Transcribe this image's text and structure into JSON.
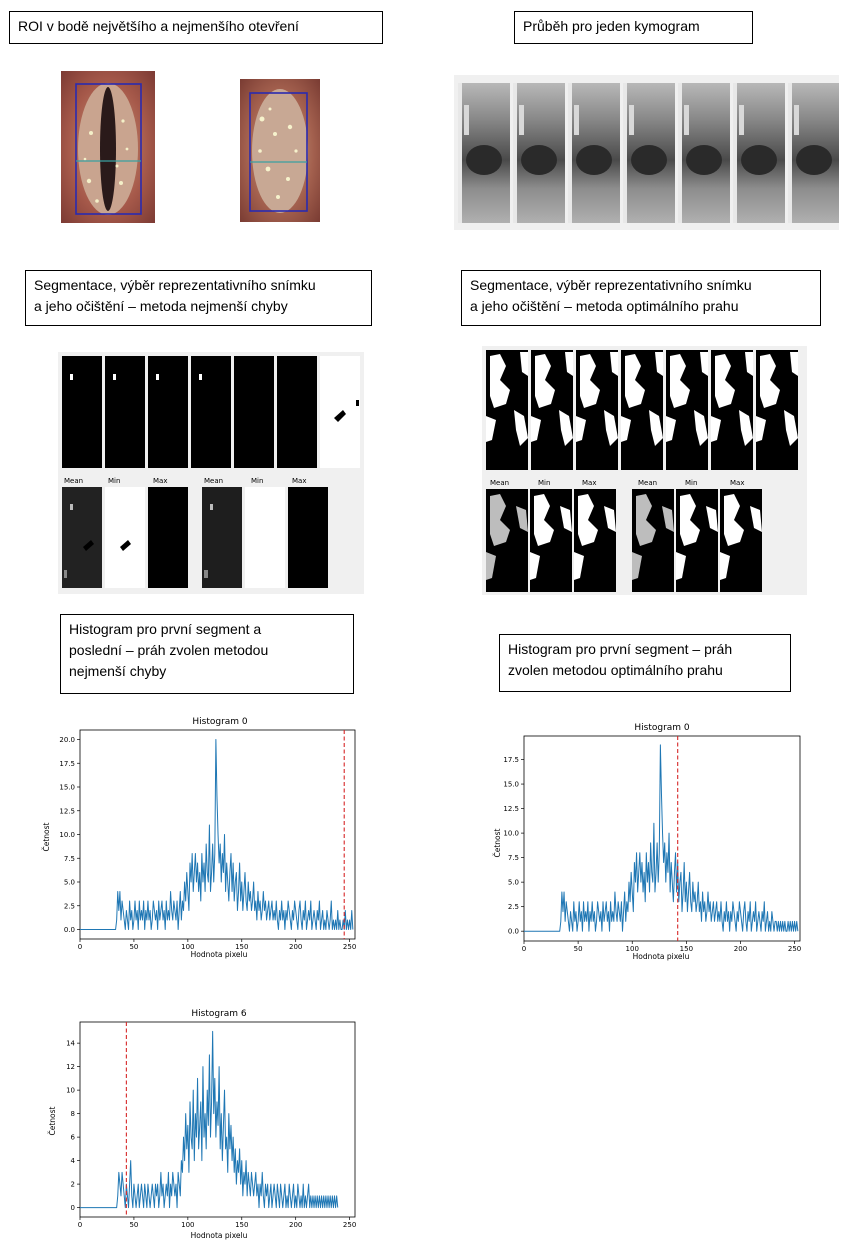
{
  "captions": {
    "roi": "ROI v bodě největšího a nejmenšího otevření",
    "kymo": "Průběh pro jeden kymogram",
    "seg_left": [
      "Segmentace, výběr reprezentativního snímku",
      "a jeho očištění – metoda nejmenší chyby"
    ],
    "seg_right": [
      "Segmentace, výběr reprezentativního snímku",
      "a jeho očištění – metoda optimálního prahu"
    ],
    "hist_left": [
      "Histogram pro první segment a",
      "poslední –  práh zvolen metodou",
      "nejmenší chyby"
    ],
    "hist_right": [
      "Histogram pro první segment –  práh",
      "zvolen metodou optimálního prahu"
    ]
  },
  "seg_panels": {
    "left_labels": [
      "Mean",
      "Min",
      "Max",
      "Mean",
      "Min",
      "Max"
    ],
    "right_labels": [
      "Mean",
      "Min",
      "Max",
      "Mean",
      "Min",
      "Max"
    ]
  },
  "chart_data": [
    {
      "type": "line",
      "title": "Histogram 0",
      "xlabel": "Hodnota pixelu",
      "ylabel": "Četnost",
      "xlim": [
        0,
        255
      ],
      "ylim": [
        -1,
        21
      ],
      "xticks": [
        "0",
        "50",
        "100",
        "150",
        "200",
        "250"
      ],
      "yticks": [
        "0.0",
        "2.5",
        "5.0",
        "7.5",
        "10.0",
        "12.5",
        "15.0",
        "17.5",
        "20.0"
      ],
      "threshold": 245,
      "series": [
        {
          "values": [
            0,
            0,
            0,
            0,
            0,
            0,
            0,
            0,
            0,
            0,
            0,
            0,
            0,
            0,
            0,
            0,
            0,
            0,
            0,
            0,
            0,
            0,
            0,
            0,
            0,
            0,
            0,
            0,
            0,
            0,
            0,
            0,
            0,
            0,
            1,
            4,
            2,
            4,
            1,
            3,
            2,
            1,
            0,
            2,
            1,
            0,
            3,
            1,
            2,
            0,
            1,
            3,
            1,
            2,
            0,
            3,
            1,
            2,
            1,
            3,
            0,
            2,
            1,
            3,
            1,
            2,
            0,
            1,
            3,
            2,
            1,
            2,
            0,
            3,
            1,
            2,
            3,
            1,
            2,
            0,
            3,
            1,
            2,
            1,
            4,
            2,
            1,
            3,
            2,
            1,
            3,
            0,
            2,
            4,
            1,
            3,
            2,
            5,
            3,
            6,
            4,
            2,
            7,
            5,
            8,
            4,
            6,
            8,
            5,
            7,
            4,
            6,
            3,
            8,
            5,
            7,
            4,
            9,
            6,
            5,
            11,
            4,
            6,
            9,
            5,
            8,
            20,
            14,
            10,
            7,
            9,
            5,
            8,
            6,
            10,
            4,
            7,
            5,
            3,
            6,
            8,
            4,
            7,
            3,
            5,
            6,
            2,
            4,
            7,
            3,
            5,
            2,
            4,
            6,
            3,
            2,
            5,
            3,
            4,
            2,
            3,
            5,
            2,
            3,
            1,
            4,
            2,
            3,
            1,
            2,
            4,
            2,
            3,
            1,
            2,
            3,
            1,
            2,
            3,
            1,
            2,
            1,
            3,
            1,
            0,
            2,
            1,
            3,
            1,
            2,
            0,
            2,
            1,
            3,
            2,
            1,
            0,
            2,
            1,
            3,
            2,
            1,
            0,
            2,
            3,
            1,
            0,
            2,
            1,
            3,
            0,
            1,
            2,
            1,
            3,
            0,
            1,
            2,
            1,
            0,
            2,
            1,
            3,
            0,
            1,
            2,
            0,
            1,
            0,
            2,
            1,
            0,
            1,
            3,
            0,
            1,
            0,
            1,
            0,
            2,
            0,
            1,
            0,
            0,
            1,
            0,
            2,
            0,
            1,
            0,
            1,
            0,
            2,
            0
          ]
        }
      ]
    },
    {
      "type": "line",
      "title": "Histogram 0",
      "xlabel": "Hodnota pixelu",
      "ylabel": "Četnost",
      "xlim": [
        0,
        255
      ],
      "ylim": [
        -1,
        19.9
      ],
      "xticks": [
        "0",
        "50",
        "100",
        "150",
        "200",
        "250"
      ],
      "yticks": [
        "0.0",
        "2.5",
        "5.0",
        "7.5",
        "10.0",
        "12.5",
        "15.0",
        "17.5"
      ],
      "threshold": 142,
      "series": [
        {
          "values": [
            0,
            0,
            0,
            0,
            0,
            0,
            0,
            0,
            0,
            0,
            0,
            0,
            0,
            0,
            0,
            0,
            0,
            0,
            0,
            0,
            0,
            0,
            0,
            0,
            0,
            0,
            0,
            0,
            0,
            0,
            0,
            0,
            0,
            0,
            1,
            4,
            2,
            4,
            1,
            3,
            2,
            1,
            0,
            2,
            1,
            0,
            3,
            1,
            2,
            0,
            1,
            3,
            1,
            2,
            0,
            3,
            1,
            2,
            1,
            3,
            0,
            2,
            1,
            3,
            1,
            2,
            0,
            1,
            3,
            2,
            1,
            2,
            0,
            3,
            1,
            2,
            3,
            1,
            2,
            0,
            3,
            1,
            2,
            1,
            4,
            2,
            1,
            3,
            2,
            1,
            3,
            0,
            2,
            4,
            1,
            3,
            2,
            5,
            3,
            6,
            4,
            2,
            7,
            5,
            8,
            4,
            6,
            8,
            5,
            7,
            4,
            6,
            3,
            8,
            5,
            7,
            4,
            9,
            6,
            5,
            11,
            4,
            6,
            9,
            5,
            8,
            19,
            14,
            10,
            7,
            9,
            5,
            8,
            6,
            10,
            4,
            7,
            5,
            3,
            6,
            8,
            4,
            7,
            3,
            5,
            6,
            2,
            4,
            7,
            3,
            5,
            2,
            4,
            6,
            3,
            2,
            5,
            3,
            4,
            2,
            3,
            5,
            2,
            3,
            1,
            4,
            2,
            3,
            1,
            2,
            4,
            2,
            3,
            1,
            2,
            3,
            1,
            2,
            3,
            1,
            2,
            1,
            3,
            1,
            0,
            2,
            1,
            3,
            1,
            2,
            0,
            2,
            1,
            3,
            2,
            1,
            0,
            2,
            1,
            3,
            2,
            1,
            0,
            2,
            3,
            1,
            0,
            2,
            1,
            3,
            0,
            1,
            2,
            1,
            3,
            0,
            1,
            2,
            1,
            0,
            2,
            1,
            3,
            0,
            1,
            2,
            0,
            1,
            0,
            2,
            1,
            0,
            1,
            1,
            0,
            1,
            0,
            1,
            0,
            1,
            0,
            1,
            0,
            0,
            1,
            0,
            1,
            0,
            1,
            0,
            1,
            0,
            1,
            0
          ]
        }
      ]
    },
    {
      "type": "line",
      "title": "Histogram 6",
      "xlabel": "Hodnota pixelu",
      "ylabel": "Četnost",
      "xlim": [
        0,
        255
      ],
      "ylim": [
        -0.8,
        15.8
      ],
      "xticks": [
        "0",
        "50",
        "100",
        "150",
        "200",
        "250"
      ],
      "yticks": [
        "0",
        "2",
        "4",
        "6",
        "8",
        "10",
        "12",
        "14"
      ],
      "threshold": 43,
      "series": [
        {
          "values": [
            0,
            0,
            0,
            0,
            0,
            0,
            0,
            0,
            0,
            0,
            0,
            0,
            0,
            0,
            0,
            0,
            0,
            0,
            0,
            0,
            0,
            0,
            0,
            0,
            0,
            0,
            0,
            0,
            0,
            0,
            0,
            0,
            0,
            0,
            0,
            1,
            3,
            2,
            1,
            3,
            2,
            1,
            0,
            2,
            1,
            0,
            2,
            4,
            1,
            0,
            2,
            1,
            0,
            1,
            2,
            0,
            1,
            2,
            1,
            0,
            2,
            1,
            0,
            2,
            1,
            0,
            1,
            2,
            1,
            0,
            2,
            1,
            2,
            0,
            1,
            3,
            1,
            2,
            0,
            1,
            2,
            1,
            3,
            0,
            2,
            1,
            3,
            2,
            1,
            2,
            0,
            3,
            2,
            1,
            4,
            3,
            6,
            4,
            8,
            5,
            7,
            3,
            9,
            6,
            5,
            10,
            4,
            8,
            6,
            11,
            5,
            7,
            9,
            4,
            12,
            6,
            8,
            5,
            10,
            7,
            13,
            6,
            9,
            15,
            8,
            11,
            6,
            9,
            7,
            12,
            5,
            8,
            4,
            7,
            10,
            5,
            6,
            3,
            8,
            5,
            7,
            4,
            6,
            3,
            5,
            2,
            4,
            3,
            5,
            2,
            4,
            1,
            3,
            2,
            4,
            1,
            3,
            2,
            1,
            3,
            2,
            1,
            2,
            3,
            1,
            2,
            0,
            2,
            1,
            3,
            1,
            0,
            2,
            1,
            2,
            0,
            1,
            2,
            0,
            1,
            2,
            1,
            0,
            2,
            1,
            0,
            2,
            1,
            0,
            1,
            2,
            0,
            1,
            0,
            2,
            1,
            0,
            1,
            2,
            0,
            1,
            0,
            2,
            1,
            0,
            1,
            0,
            2,
            0,
            1,
            0,
            1,
            2,
            0,
            1,
            0,
            1,
            0,
            1,
            0,
            1,
            0,
            1,
            0,
            1,
            0,
            1,
            0,
            1,
            0,
            1,
            0,
            1,
            0,
            1,
            0,
            1,
            0,
            1,
            0
          ]
        }
      ]
    }
  ]
}
